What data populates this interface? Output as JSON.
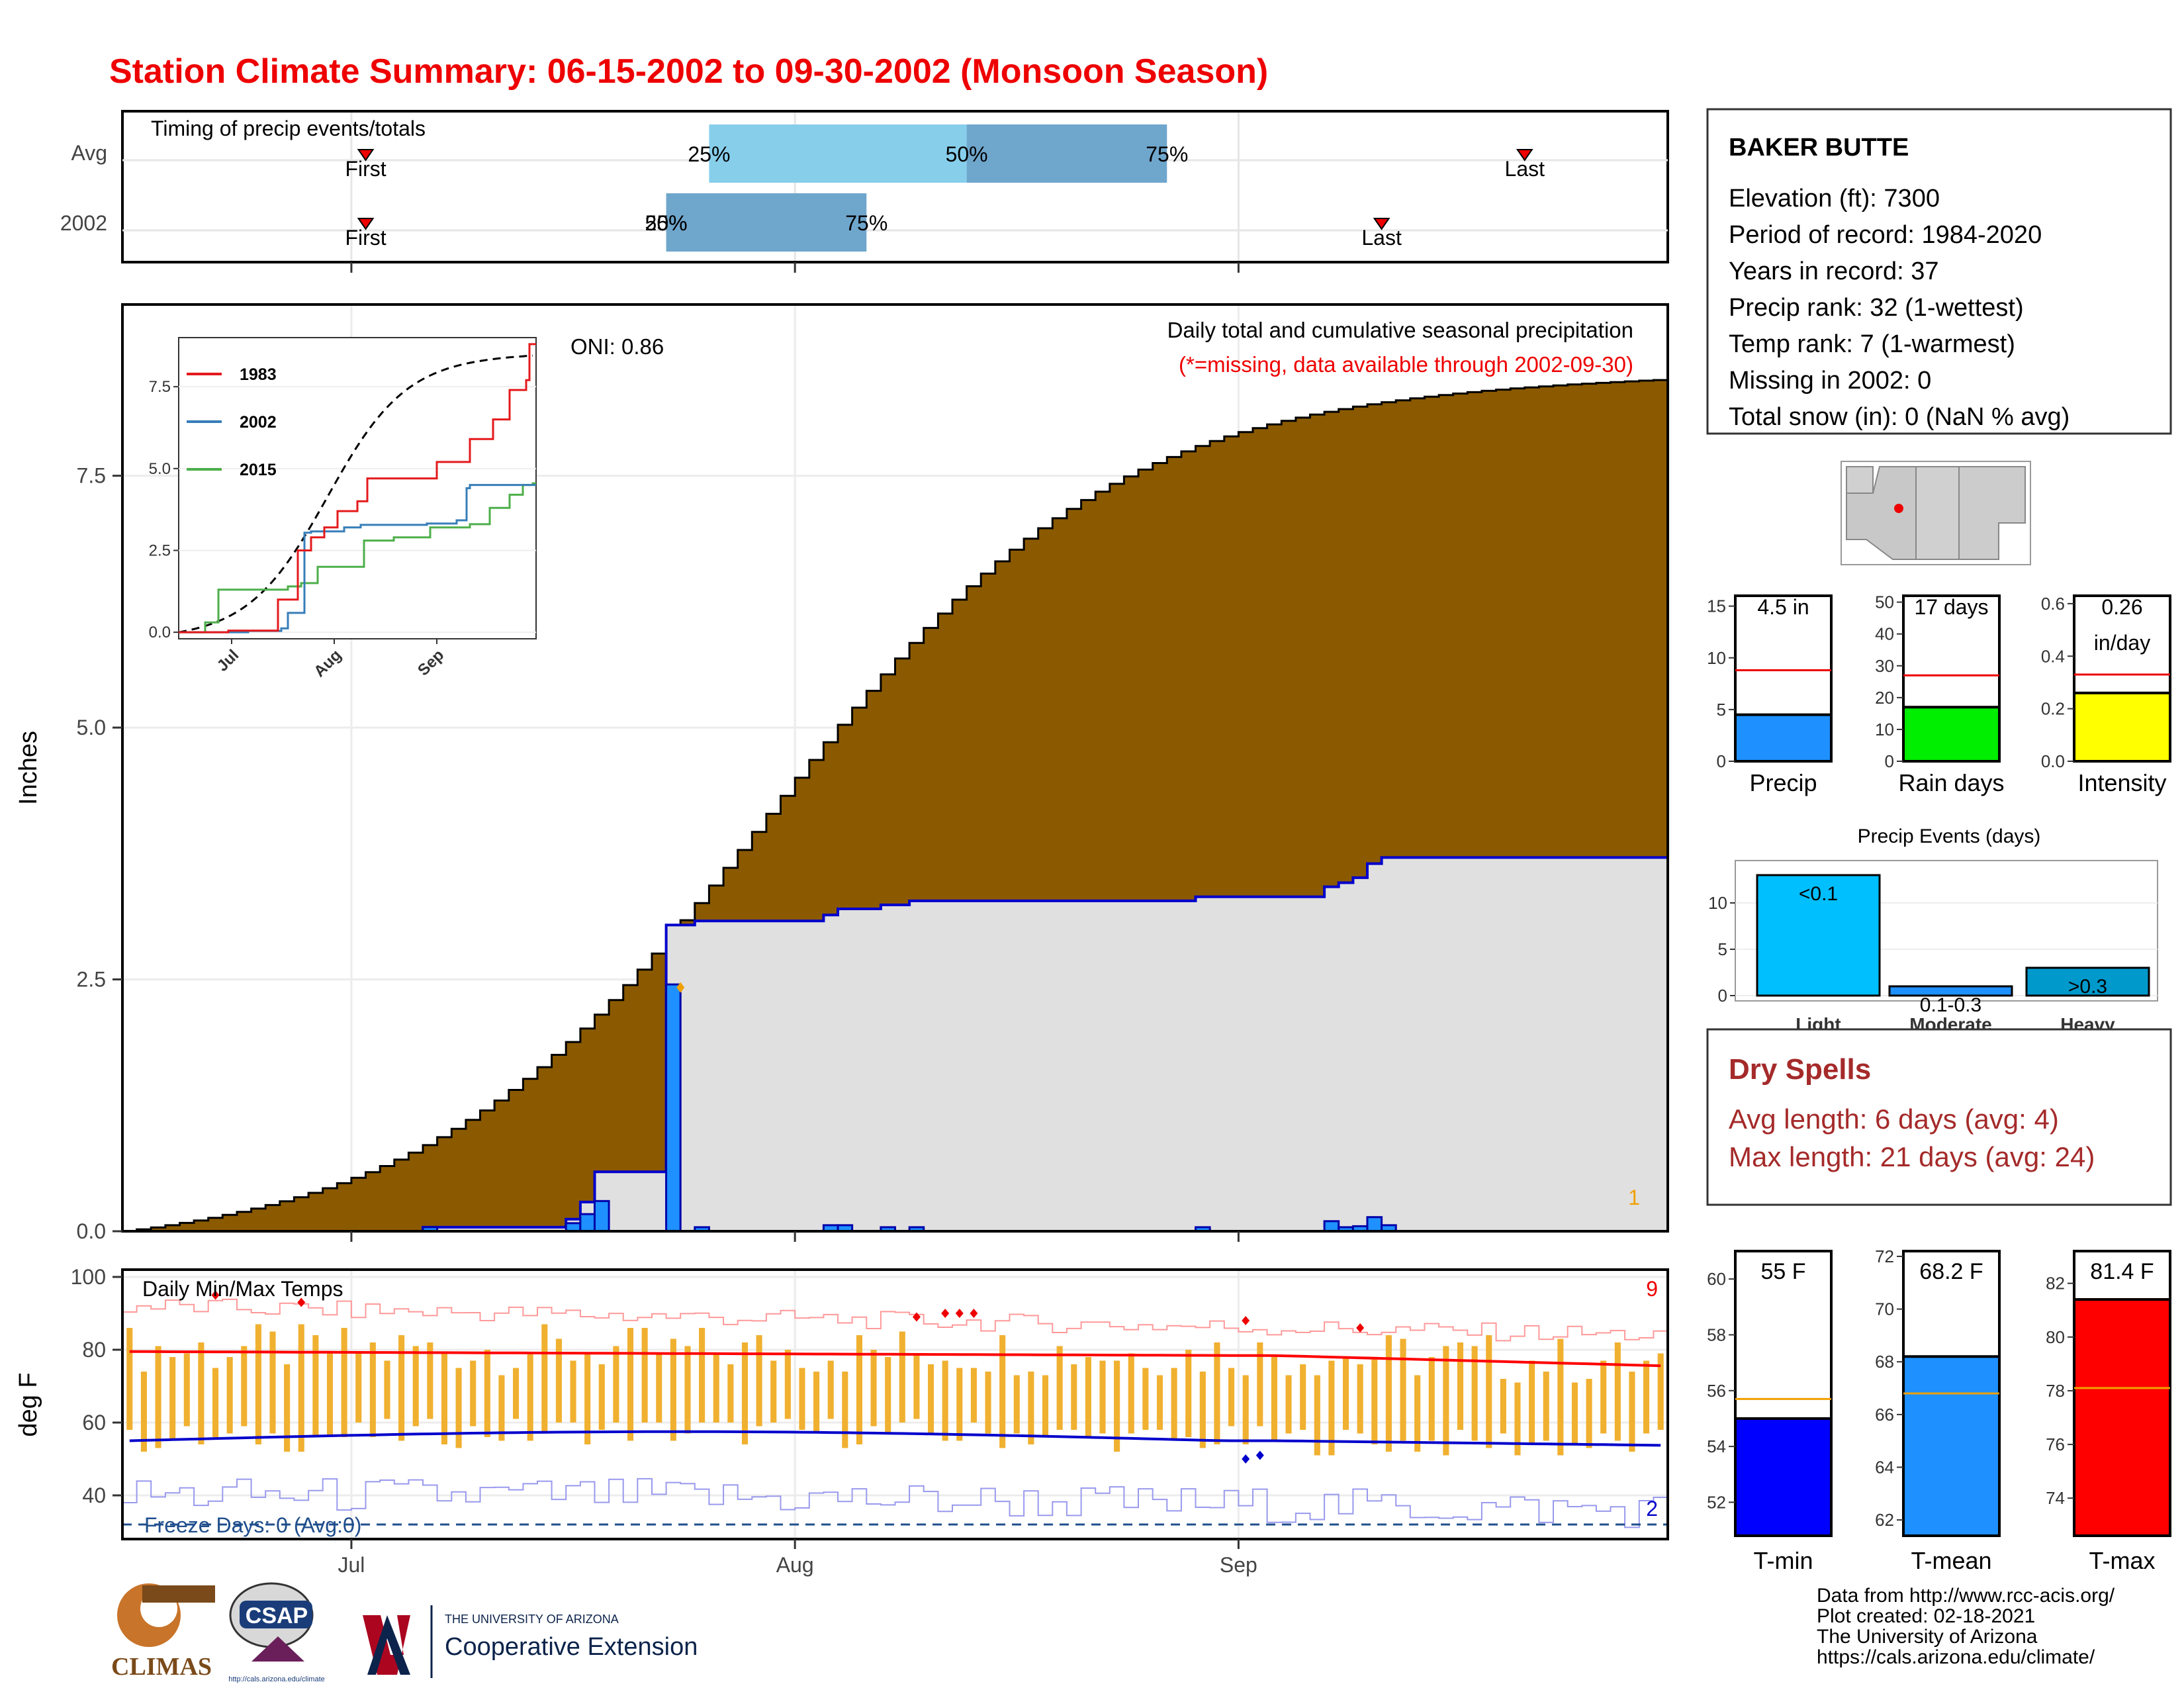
{
  "title": "Station Climate Summary: 06-15-2002 to 09-30-2002 (Monsoon Season)",
  "colors": {
    "title": "#ee0000",
    "cum_avg_fill": "#8b5a00",
    "cum_above_fill": "#008800",
    "cum_obs_fill": "#e0e0e0",
    "cum_line": "#0000cc",
    "daily_bar": "#1e90ff",
    "tmax_bar": "#f0b030",
    "tmax_line": "#ff0000",
    "tmin_line": "#0000cc",
    "precip_bar": "#1e90ff",
    "rain_days_bar": "#00ee00",
    "intensity_bar": "#ffff00",
    "light_bar": "#00bfff",
    "moderate_bar": "#1e90ff",
    "heavy_bar": "#0099cc",
    "tmin_summary": "#0000ff",
    "tmean_summary": "#1e90ff",
    "tmax_summary": "#ff0000",
    "dry_spell_text": "#a52a2a"
  },
  "timing": {
    "label": "Timing of precip events/totals",
    "rows": [
      {
        "name": "Avg",
        "first_label": "First",
        "last_label": "Last",
        "p25_label": "25%",
        "p50_label": "50%",
        "p75_label": "75%",
        "first_day": 17,
        "last_day": 98,
        "p25_day": 41,
        "p50_day": 59,
        "p75_day": 73
      },
      {
        "name": "2002",
        "first_label": "First",
        "last_label": "Last",
        "p25_label": "25%",
        "p50_label": "50%",
        "p75_label": "75%",
        "first_day": 17,
        "last_day": 88,
        "p25_day": 38,
        "p50_day": 38,
        "p75_day": 52
      }
    ]
  },
  "main_chart": {
    "ylabel": "Inches",
    "oni": "ONI: 0.86",
    "subtitle": "Daily total and cumulative seasonal precipitation",
    "missing_note": "(*=missing, data available through 2002-09-30)",
    "corner_count": "1",
    "y_ticks": [
      "0.0",
      "2.5",
      "5.0",
      "7.5"
    ],
    "y_values": [
      0,
      2.5,
      5,
      7.5
    ],
    "ylim": [
      0,
      9.2
    ],
    "x_ticks": [
      "Jul",
      "Aug",
      "Sep"
    ],
    "x_tick_days": [
      16,
      47,
      78
    ],
    "days": 108
  },
  "inset": {
    "y_ticks": [
      "0.0",
      "2.5",
      "5.0",
      "7.5"
    ],
    "x_ticks": [
      "Jul",
      "Aug",
      "Sep"
    ],
    "legend": [
      "1983",
      "2002",
      "2015"
    ],
    "legend_colors": [
      "#e41a1c",
      "#377eb8",
      "#4daf4a"
    ]
  },
  "station": {
    "name": "BAKER BUTTE",
    "lines": [
      "Elevation (ft): 7300",
      "Period of record: 1984-2020",
      "Years in record: 37",
      "Precip rank: 32 (1-wettest)",
      "Temp rank: 7 (1-warmest)",
      "Missing in 2002: 0",
      "Total snow (in): 0 (NaN % avg)"
    ]
  },
  "summary_bars": [
    {
      "label": "Precip",
      "value_label": "4.5 in",
      "value": 4.5,
      "avg": 8.8,
      "ymax": 16,
      "ticks": [
        0,
        5,
        10,
        15
      ]
    },
    {
      "label": "Rain days",
      "value_label": "17 days",
      "value": 17,
      "avg": 27,
      "ymax": 52,
      "ticks": [
        0,
        10,
        20,
        30,
        40,
        50
      ]
    },
    {
      "label": "Intensity",
      "value_label": "0.26",
      "value_label2": "in/day",
      "value": 0.26,
      "avg": 0.33,
      "ymax": 0.63,
      "ticks": [
        "0.0",
        "0.2",
        "0.4",
        "0.6"
      ]
    }
  ],
  "precip_events": {
    "title": "Precip Events (days)",
    "categories": [
      "Light",
      "Moderate",
      "Heavy"
    ],
    "values": [
      13,
      1,
      3
    ],
    "labels": [
      "<0.1",
      "0.1-0.3",
      ">0.3"
    ],
    "ticks": [
      0,
      5,
      10
    ]
  },
  "dry_spells": {
    "title": "Dry Spells",
    "avg": "Avg length: 6 days (avg: 4)",
    "max": "Max length: 21 days (avg: 24)"
  },
  "temp_chart": {
    "title": "Daily Min/Max Temps",
    "ylabel": "deg F",
    "y_ticks": [
      "40",
      "60",
      "80",
      "100"
    ],
    "y_values": [
      40,
      60,
      80,
      100
    ],
    "ylim": [
      28,
      102
    ],
    "freeze_label": "Freeze Days: 0 (Avg:0)",
    "record_high_count": "9",
    "record_low_count": "2"
  },
  "temp_summary": [
    {
      "label": "T-min",
      "value_label": "55 F",
      "value": 55,
      "avg": 55.7,
      "ymin": 50.8,
      "ymax": 61,
      "ticks": [
        52,
        54,
        56,
        58,
        60
      ]
    },
    {
      "label": "T-mean",
      "value_label": "68.2 F",
      "value": 68.2,
      "avg": 66.8,
      "ymin": 61.4,
      "ymax": 72.2,
      "ticks": [
        62,
        64,
        66,
        68,
        70,
        72
      ]
    },
    {
      "label": "T-max",
      "value_label": "81.4 F",
      "value": 81.4,
      "avg": 78.1,
      "ymin": 72.6,
      "ymax": 83.2,
      "ticks": [
        74,
        76,
        78,
        80,
        82
      ]
    }
  ],
  "credits": [
    "Data from http://www.rcc-acis.org/",
    "Plot created: 02-18-2021",
    "The University of Arizona",
    "https://cals.arizona.edu/climate/"
  ],
  "logos": {
    "climas": "CLIMAS",
    "csap": "CSAP",
    "csap_url": "http://cals.arizona.edu/climate",
    "ua_line1": "THE UNIVERSITY OF ARIZONA",
    "ua_line2": "Cooperative Extension"
  }
}
